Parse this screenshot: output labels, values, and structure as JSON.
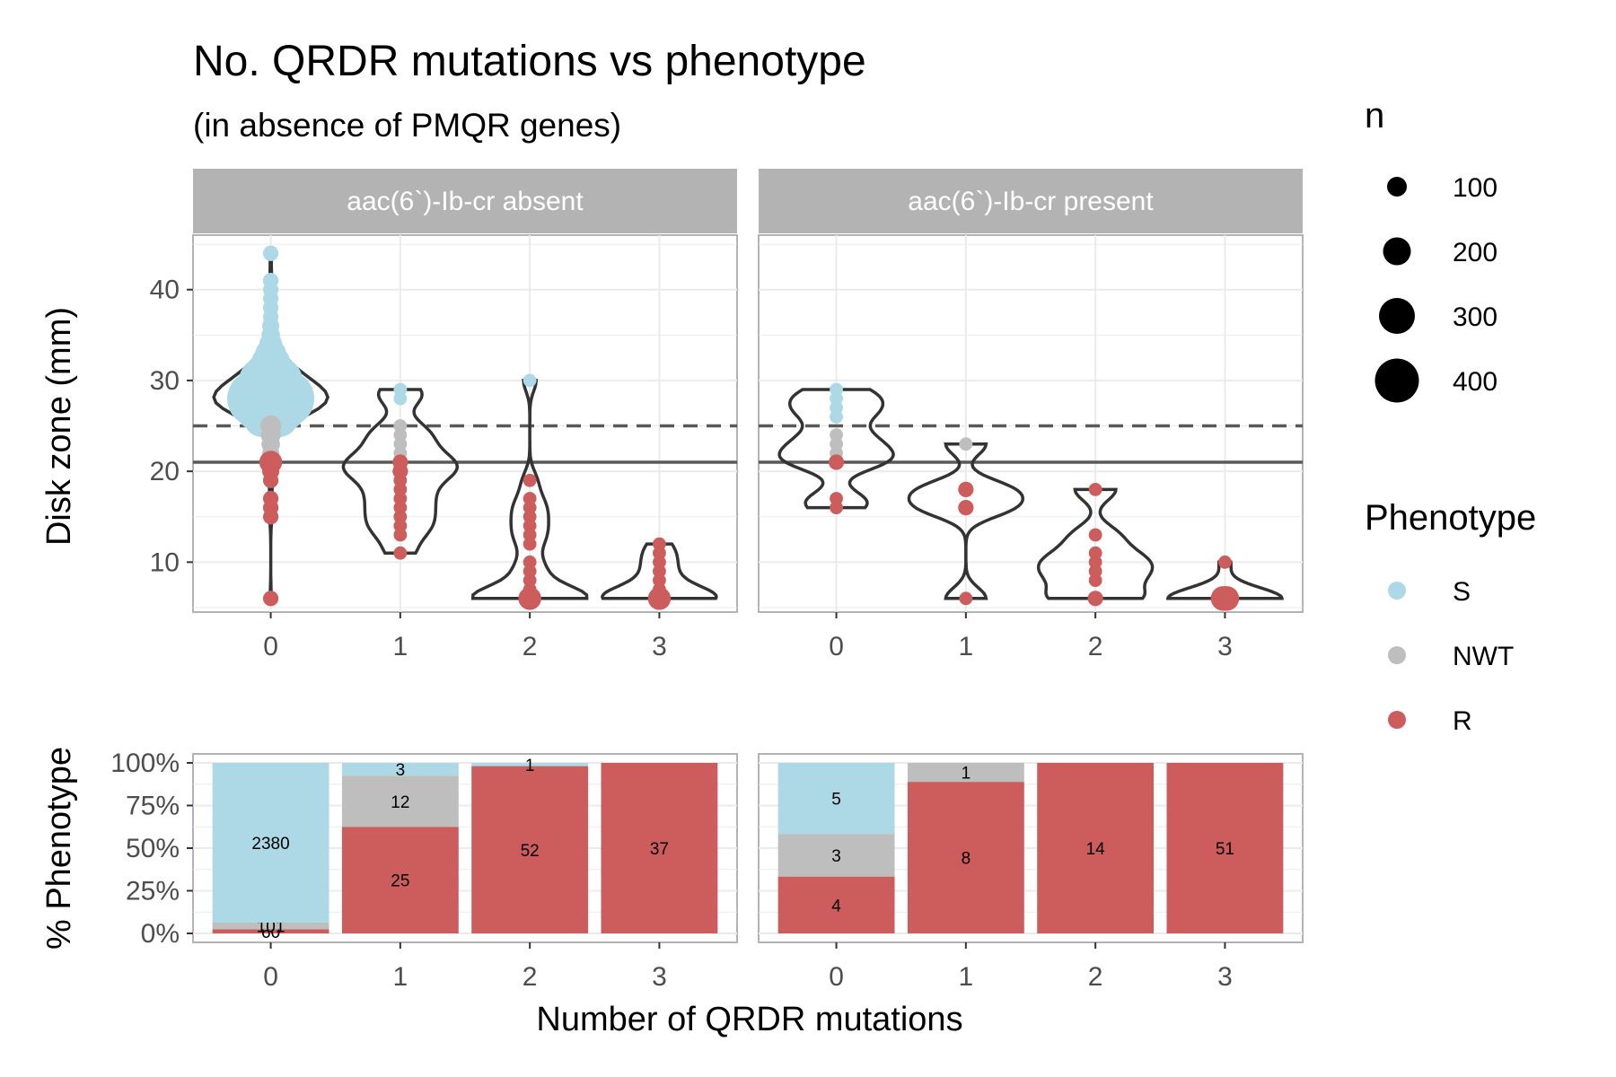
{
  "title": "No. QRDR mutations vs phenotype",
  "subtitle": "(in absence of PMQR genes)",
  "colors": {
    "S": "#add8e6",
    "NWT": "#bebebe",
    "R": "#cd5c5c",
    "strip": "#b3b3b3",
    "violin": "#333333"
  },
  "chart_data": [
    {
      "type": "violin",
      "panel": "upper",
      "ylabel": "Disk zone (mm)",
      "ylim": [
        4.5,
        46
      ],
      "y_ticks": [
        10,
        20,
        30,
        40
      ],
      "x_ticks": [
        "0",
        "1",
        "2",
        "3"
      ],
      "reference_lines": [
        {
          "y": 25,
          "style": "dashed"
        },
        {
          "y": 21,
          "style": "solid"
        }
      ],
      "facets": [
        {
          "label": "aac(6`)-Ib-cr absent",
          "groups": [
            {
              "x": 0,
              "min": 6,
              "max": 44,
              "points": [
                [
                  44,
                  "S",
                  10
                ],
                [
                  41,
                  "S",
                  10
                ],
                [
                  40,
                  "S",
                  10
                ],
                [
                  39,
                  "S",
                  10
                ],
                [
                  38,
                  "S",
                  10
                ],
                [
                  37,
                  "S",
                  10
                ],
                [
                  36,
                  "S",
                  15
                ],
                [
                  35,
                  "S",
                  20
                ],
                [
                  34,
                  "S",
                  40
                ],
                [
                  33,
                  "S",
                  60
                ],
                [
                  32,
                  "S",
                  100
                ],
                [
                  31,
                  "S",
                  150
                ],
                [
                  30,
                  "S",
                  250
                ],
                [
                  29,
                  "S",
                  300
                ],
                [
                  28,
                  "S",
                  420
                ],
                [
                  27,
                  "S",
                  300
                ],
                [
                  26,
                  "S",
                  200
                ],
                [
                  25,
                  "NWT",
                  30
                ],
                [
                  24,
                  "NWT",
                  25
                ],
                [
                  23,
                  "NWT",
                  20
                ],
                [
                  22,
                  "NWT",
                  15
                ],
                [
                  21,
                  "R",
                  40
                ],
                [
                  20,
                  "R",
                  15
                ],
                [
                  19,
                  "R",
                  10
                ],
                [
                  17,
                  "R",
                  10
                ],
                [
                  16,
                  "R",
                  10
                ],
                [
                  15,
                  "R",
                  10
                ],
                [
                  6,
                  "R",
                  10
                ]
              ]
            },
            {
              "x": 1,
              "min": 11,
              "max": 29,
              "points": [
                [
                  29,
                  "S",
                  5
                ],
                [
                  28,
                  "S",
                  5
                ],
                [
                  25,
                  "NWT",
                  5
                ],
                [
                  24,
                  "NWT",
                  5
                ],
                [
                  23,
                  "NWT",
                  5
                ],
                [
                  22,
                  "NWT",
                  5
                ],
                [
                  21,
                  "R",
                  10
                ],
                [
                  20,
                  "R",
                  10
                ],
                [
                  19,
                  "R",
                  5
                ],
                [
                  18,
                  "R",
                  5
                ],
                [
                  17,
                  "R",
                  5
                ],
                [
                  16,
                  "R",
                  5
                ],
                [
                  15,
                  "R",
                  5
                ],
                [
                  14,
                  "R",
                  5
                ],
                [
                  13,
                  "R",
                  5
                ],
                [
                  11,
                  "R",
                  5
                ]
              ]
            },
            {
              "x": 2,
              "min": 6,
              "max": 30,
              "points": [
                [
                  30,
                  "S",
                  5
                ],
                [
                  19,
                  "R",
                  5
                ],
                [
                  17,
                  "R",
                  5
                ],
                [
                  16,
                  "R",
                  5
                ],
                [
                  15,
                  "R",
                  5
                ],
                [
                  14,
                  "R",
                  5
                ],
                [
                  13,
                  "R",
                  5
                ],
                [
                  12,
                  "R",
                  5
                ],
                [
                  10,
                  "R",
                  5
                ],
                [
                  9,
                  "R",
                  5
                ],
                [
                  8,
                  "R",
                  5
                ],
                [
                  7,
                  "R",
                  5
                ],
                [
                  6,
                  "R",
                  40
                ]
              ]
            },
            {
              "x": 3,
              "min": 6,
              "max": 12,
              "points": [
                [
                  12,
                  "R",
                  5
                ],
                [
                  11,
                  "R",
                  5
                ],
                [
                  10,
                  "R",
                  5
                ],
                [
                  9,
                  "R",
                  5
                ],
                [
                  8,
                  "R",
                  5
                ],
                [
                  7,
                  "R",
                  5
                ],
                [
                  6,
                  "R",
                  40
                ]
              ]
            }
          ]
        },
        {
          "label": "aac(6`)-Ib-cr present",
          "groups": [
            {
              "x": 0,
              "min": 16,
              "max": 29,
              "points": [
                [
                  29,
                  "S",
                  5
                ],
                [
                  28,
                  "S",
                  5
                ],
                [
                  27,
                  "S",
                  5
                ],
                [
                  26,
                  "S",
                  5
                ],
                [
                  24,
                  "NWT",
                  5
                ],
                [
                  23,
                  "NWT",
                  5
                ],
                [
                  22,
                  "NWT",
                  5
                ],
                [
                  21,
                  "R",
                  10
                ],
                [
                  17,
                  "R",
                  5
                ],
                [
                  16,
                  "R",
                  5
                ]
              ]
            },
            {
              "x": 1,
              "min": 6,
              "max": 23,
              "points": [
                [
                  23,
                  "NWT",
                  5
                ],
                [
                  18,
                  "R",
                  10
                ],
                [
                  16,
                  "R",
                  10
                ],
                [
                  6,
                  "R",
                  5
                ]
              ]
            },
            {
              "x": 2,
              "min": 6,
              "max": 18,
              "points": [
                [
                  18,
                  "R",
                  5
                ],
                [
                  13,
                  "R",
                  5
                ],
                [
                  11,
                  "R",
                  5
                ],
                [
                  10,
                  "R",
                  5
                ],
                [
                  9,
                  "R",
                  5
                ],
                [
                  8,
                  "R",
                  5
                ],
                [
                  6,
                  "R",
                  10
                ]
              ]
            },
            {
              "x": 3,
              "min": 6,
              "max": 10,
              "points": [
                [
                  10,
                  "R",
                  5
                ],
                [
                  6,
                  "R",
                  50
                ]
              ]
            }
          ]
        }
      ]
    },
    {
      "type": "bar",
      "stacked": true,
      "panel": "lower",
      "xlabel": "Number of QRDR mutations",
      "ylabel": "% Phenotype",
      "ylim": [
        0,
        100
      ],
      "y_ticks": [
        "0%",
        "25%",
        "50%",
        "75%",
        "100%"
      ],
      "categories": [
        "0",
        "1",
        "2",
        "3"
      ],
      "facets": [
        {
          "label": "aac(6`)-Ib-cr absent",
          "series": [
            {
              "name": "R",
              "values": [
                60,
                25,
                52,
                37
              ]
            },
            {
              "name": "NWT",
              "values": [
                101,
                12,
                0,
                0
              ]
            },
            {
              "name": "S",
              "values": [
                2380,
                3,
                1,
                0
              ]
            }
          ]
        },
        {
          "label": "aac(6`)-Ib-cr present",
          "series": [
            {
              "name": "R",
              "values": [
                4,
                8,
                14,
                51
              ]
            },
            {
              "name": "NWT",
              "values": [
                3,
                1,
                0,
                0
              ]
            },
            {
              "name": "S",
              "values": [
                5,
                0,
                0,
                0
              ]
            }
          ]
        }
      ]
    }
  ],
  "legend": {
    "size_title": "n",
    "size_entries": [
      100,
      200,
      300,
      400
    ],
    "color_title": "Phenotype",
    "color_entries": [
      "S",
      "NWT",
      "R"
    ]
  }
}
